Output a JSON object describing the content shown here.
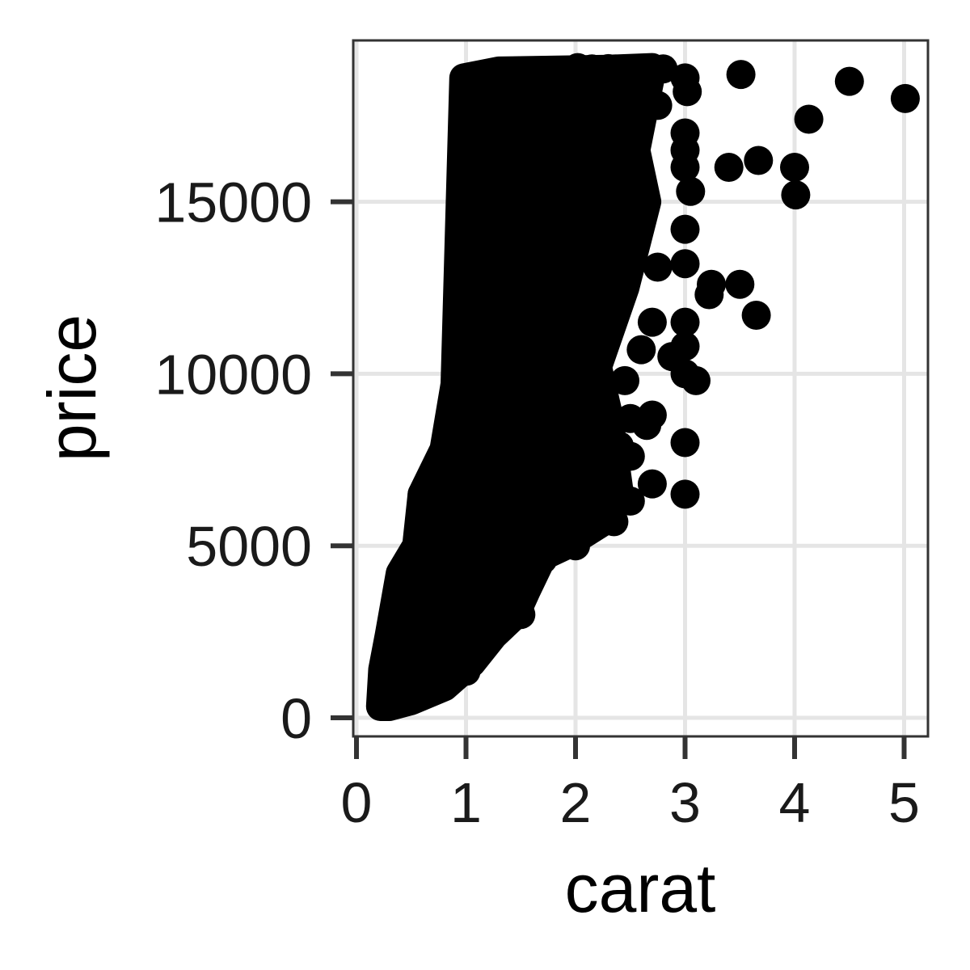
{
  "chart_data": {
    "type": "scatter",
    "xlabel": "carat",
    "ylabel": "price",
    "xlim": [
      0.2,
      5.25
    ],
    "ylim": [
      -450,
      19750
    ],
    "grid": true,
    "x_ticks": [
      0,
      1,
      2,
      3,
      4,
      5
    ],
    "y_ticks": [
      0,
      5000,
      10000,
      15000
    ],
    "x_tick_labels": [
      "0",
      "1",
      "2",
      "3",
      "4",
      "5"
    ],
    "y_tick_labels": [
      "0",
      "5000",
      "10000",
      "15000"
    ],
    "colors": {
      "points": "#000000",
      "grid": "#e5e5e5",
      "panel_border": "#333333"
    },
    "dense_regions": [
      {
        "description_x": "carat",
        "outline": [
          [
            0.22,
            330
          ],
          [
            0.24,
            1400
          ],
          [
            0.3,
            2400
          ],
          [
            0.4,
            4200
          ],
          [
            0.55,
            5000
          ],
          [
            0.6,
            6500
          ],
          [
            0.8,
            7800
          ],
          [
            0.9,
            9700
          ],
          [
            0.98,
            18600
          ],
          [
            1.3,
            18800
          ],
          [
            2.3,
            18850
          ],
          [
            2.7,
            18900
          ],
          [
            2.55,
            16500
          ],
          [
            2.65,
            15000
          ],
          [
            2.45,
            12500
          ],
          [
            2.2,
            10200
          ],
          [
            2.3,
            8800
          ],
          [
            2.4,
            6500
          ],
          [
            2.25,
            5700
          ],
          [
            1.9,
            5000
          ],
          [
            1.7,
            4700
          ],
          [
            1.55,
            3700
          ],
          [
            1.45,
            3000
          ],
          [
            1.25,
            2400
          ],
          [
            1.05,
            1600
          ],
          [
            0.8,
            900
          ],
          [
            0.5,
            500
          ],
          [
            0.3,
            330
          ]
        ]
      }
    ],
    "series": [
      {
        "values": [
          [
            2.02,
            18900
          ],
          [
            2.15,
            18860
          ],
          [
            2.3,
            18870
          ],
          [
            2.5,
            18820
          ],
          [
            2.8,
            18860
          ],
          [
            3.0,
            18600
          ],
          [
            3.02,
            18200
          ],
          [
            2.75,
            17800
          ],
          [
            3.0,
            17000
          ],
          [
            3.0,
            16500
          ],
          [
            3.0,
            16000
          ],
          [
            3.05,
            15300
          ],
          [
            3.0,
            14200
          ],
          [
            3.0,
            13200
          ],
          [
            2.75,
            13100
          ],
          [
            2.7,
            11500
          ],
          [
            3.0,
            11500
          ],
          [
            3.0,
            10800
          ],
          [
            2.88,
            10500
          ],
          [
            2.6,
            10700
          ],
          [
            2.45,
            9800
          ],
          [
            3.0,
            10000
          ],
          [
            3.1,
            9800
          ],
          [
            2.5,
            8700
          ],
          [
            2.7,
            8800
          ],
          [
            2.65,
            8500
          ],
          [
            2.4,
            7900
          ],
          [
            2.5,
            7600
          ],
          [
            3.0,
            8000
          ],
          [
            2.7,
            6800
          ],
          [
            2.5,
            6300
          ],
          [
            3.0,
            6500
          ],
          [
            3.22,
            12300
          ],
          [
            3.24,
            12600
          ],
          [
            3.5,
            12600
          ],
          [
            3.65,
            11700
          ],
          [
            3.4,
            16000
          ],
          [
            3.67,
            16200
          ],
          [
            4.0,
            16000
          ],
          [
            4.01,
            15200
          ],
          [
            4.13,
            17400
          ],
          [
            3.51,
            18700
          ],
          [
            4.5,
            18500
          ],
          [
            5.01,
            18000
          ],
          [
            0.6,
            6500
          ],
          [
            1.0,
            1350
          ],
          [
            1.5,
            3000
          ],
          [
            1.7,
            4600
          ],
          [
            2.0,
            5000
          ],
          [
            2.35,
            5700
          ],
          [
            0.4,
            2400
          ],
          [
            0.8,
            7800
          ],
          [
            0.9,
            9600
          ],
          [
            0.3,
            1300
          ],
          [
            0.23,
            330
          ]
        ]
      }
    ]
  }
}
